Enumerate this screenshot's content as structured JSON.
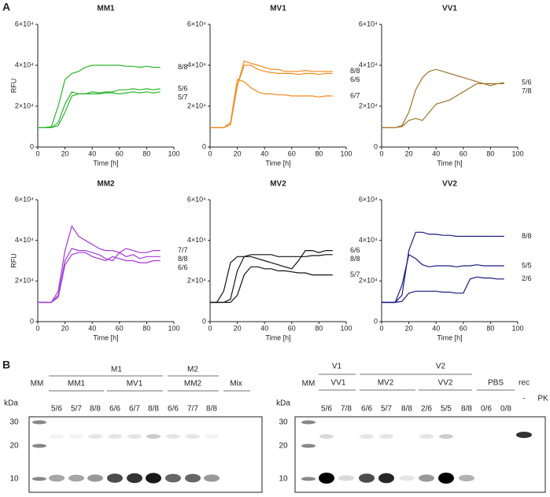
{
  "panel_labels": [
    "A",
    "B"
  ],
  "chart_data": [
    {
      "type": "line",
      "title": "MM1",
      "x_label": "Time [h]",
      "y_label": "RFU",
      "xlim": [
        0,
        100
      ],
      "ylim": [
        0,
        60000
      ],
      "xticks": [
        0,
        20,
        40,
        60,
        80,
        100
      ],
      "yticks": [
        0,
        {
          "value": 20000,
          "label": "2×10⁴"
        },
        {
          "value": 40000,
          "label": "4×10⁴"
        },
        {
          "value": 60000,
          "label": "6×10⁴"
        }
      ],
      "x": [
        0,
        5,
        10,
        15,
        20,
        25,
        30,
        35,
        40,
        45,
        50,
        55,
        60,
        65,
        70,
        75,
        80,
        85,
        90
      ],
      "series": [
        {
          "name": "8/8",
          "color": "#2db42d",
          "values": [
            9500,
            9500,
            10000,
            20000,
            33000,
            36000,
            37000,
            39000,
            40000,
            40000,
            40000,
            40000,
            40000,
            39500,
            39500,
            39000,
            39500,
            39000,
            39000
          ]
        },
        {
          "name": "5/6",
          "color": "#2db42d",
          "values": [
            9500,
            9500,
            9500,
            12000,
            21000,
            27000,
            26000,
            26000,
            27000,
            26500,
            27000,
            27000,
            28000,
            28000,
            28500,
            28000,
            28500,
            28000,
            28500
          ]
        },
        {
          "name": "5/7",
          "color": "#2db42d",
          "values": [
            9500,
            9500,
            9500,
            10500,
            17000,
            25000,
            26000,
            26000,
            26000,
            26000,
            26500,
            26500,
            26000,
            26500,
            27000,
            26500,
            27000,
            26500,
            27000
          ]
        }
      ]
    },
    {
      "type": "line",
      "title": "MV1",
      "x_label": "Time [h]",
      "xlim": [
        0,
        100
      ],
      "ylim": [
        0,
        60000
      ],
      "xticks": [
        0,
        20,
        40,
        60,
        80,
        100
      ],
      "yticks": [
        0,
        {
          "value": 20000,
          "label": "2×10⁴"
        },
        {
          "value": 40000,
          "label": "4×10⁴"
        },
        {
          "value": 60000,
          "label": "6×10⁴"
        }
      ],
      "x": [
        0,
        5,
        10,
        15,
        20,
        25,
        30,
        35,
        40,
        45,
        50,
        55,
        60,
        65,
        70,
        75,
        80,
        85,
        90
      ],
      "series": [
        {
          "name": "8/8",
          "color": "#f28a1c",
          "values": [
            9500,
            9500,
            9500,
            11000,
            30000,
            42000,
            41000,
            40000,
            39000,
            38000,
            38000,
            37000,
            37000,
            37000,
            37500,
            37000,
            37000,
            37000,
            37000
          ]
        },
        {
          "name": "6/6",
          "color": "#f28a1c",
          "values": [
            9500,
            9500,
            9500,
            11000,
            30000,
            40000,
            40000,
            38000,
            37000,
            36500,
            36000,
            36000,
            36000,
            35500,
            36000,
            36000,
            35500,
            36000,
            36000
          ]
        },
        {
          "name": "6/7",
          "color": "#f28a1c",
          "values": [
            9500,
            9500,
            9500,
            12000,
            33000,
            32000,
            29000,
            27000,
            26000,
            26000,
            25500,
            25500,
            25000,
            25000,
            25000,
            25000,
            24500,
            25000,
            25000
          ]
        }
      ]
    },
    {
      "type": "line",
      "title": "VV1",
      "x_label": "Time [h]",
      "xlim": [
        0,
        100
      ],
      "ylim": [
        0,
        60000
      ],
      "xticks": [
        0,
        20,
        40,
        60,
        80,
        100
      ],
      "yticks": [
        0,
        {
          "value": 20000,
          "label": "2×10⁴"
        },
        {
          "value": 40000,
          "label": "4×10⁴"
        },
        {
          "value": 60000,
          "label": "6×10⁴"
        }
      ],
      "x": [
        0,
        5,
        10,
        15,
        20,
        25,
        30,
        35,
        40,
        45,
        50,
        55,
        60,
        65,
        70,
        75,
        80,
        85,
        90
      ],
      "series": [
        {
          "name": "7/8",
          "color": "#a0722a",
          "values": [
            9500,
            9500,
            9500,
            10500,
            17000,
            28000,
            34000,
            37000,
            38000,
            37000,
            36000,
            35000,
            34000,
            33000,
            32000,
            31000,
            31000,
            31000,
            31000
          ]
        },
        {
          "name": "5/6",
          "color": "#a0722a",
          "values": [
            9500,
            9500,
            9500,
            10000,
            13000,
            14000,
            13000,
            17000,
            21000,
            22000,
            23000,
            25000,
            27000,
            29000,
            31000,
            31000,
            30000,
            31000,
            31500
          ]
        }
      ]
    },
    {
      "type": "line",
      "title": "MM2",
      "x_label": "Time [h]",
      "y_label": "RFU",
      "xlim": [
        0,
        100
      ],
      "ylim": [
        0,
        60000
      ],
      "xticks": [
        0,
        20,
        40,
        60,
        80,
        100
      ],
      "yticks": [
        0,
        {
          "value": 20000,
          "label": "2×10⁴"
        },
        {
          "value": 40000,
          "label": "4×10⁴"
        },
        {
          "value": 60000,
          "label": "6×10⁴"
        }
      ],
      "x": [
        0,
        5,
        10,
        15,
        20,
        25,
        30,
        35,
        40,
        45,
        50,
        55,
        60,
        65,
        70,
        75,
        80,
        85,
        90
      ],
      "series": [
        {
          "name": "7/7",
          "color": "#a43ad6",
          "values": [
            9500,
            9500,
            9500,
            15000,
            35000,
            47000,
            42000,
            40000,
            38000,
            36000,
            35000,
            35000,
            34000,
            36000,
            35000,
            34000,
            34000,
            35000,
            35000
          ]
        },
        {
          "name": "8/8",
          "color": "#a43ad6",
          "values": [
            9500,
            9500,
            9500,
            13000,
            30000,
            36000,
            35000,
            35000,
            34000,
            33000,
            31000,
            30000,
            34000,
            32000,
            33000,
            31000,
            32000,
            32000,
            32000
          ]
        },
        {
          "name": "6/6",
          "color": "#a43ad6",
          "values": [
            9500,
            9500,
            9500,
            12000,
            28000,
            33000,
            34000,
            34000,
            32000,
            31000,
            30000,
            32000,
            31000,
            30000,
            30000,
            29000,
            29000,
            30000,
            30000
          ]
        }
      ]
    },
    {
      "type": "line",
      "title": "MV2",
      "x_label": "Time [h]",
      "xlim": [
        0,
        100
      ],
      "ylim": [
        0,
        60000
      ],
      "xticks": [
        0,
        20,
        40,
        60,
        80,
        100
      ],
      "yticks": [
        0,
        {
          "value": 20000,
          "label": "2×10⁴"
        },
        {
          "value": 40000,
          "label": "4×10⁴"
        },
        {
          "value": 60000,
          "label": "6×10⁴"
        }
      ],
      "x": [
        0,
        5,
        10,
        15,
        20,
        25,
        30,
        35,
        40,
        45,
        50,
        55,
        60,
        65,
        70,
        75,
        80,
        85,
        90
      ],
      "series": [
        {
          "name": "6/6",
          "color": "#111111",
          "values": [
            9500,
            9500,
            15000,
            29000,
            32000,
            32000,
            32000,
            31000,
            30000,
            29000,
            28000,
            27000,
            26000,
            30000,
            35000,
            35000,
            34000,
            35000,
            35000
          ]
        },
        {
          "name": "8/8",
          "color": "#111111",
          "values": [
            9500,
            9500,
            9500,
            11000,
            25000,
            32000,
            33000,
            33000,
            33000,
            33000,
            32000,
            32000,
            32000,
            32000,
            32000,
            32500,
            32500,
            33000,
            33000
          ]
        },
        {
          "name": "5/7",
          "color": "#111111",
          "values": [
            9500,
            9500,
            9500,
            9500,
            13000,
            23000,
            27000,
            27000,
            26000,
            26000,
            25000,
            25000,
            24500,
            24000,
            24000,
            23000,
            23000,
            23000,
            23000
          ]
        }
      ]
    },
    {
      "type": "line",
      "title": "VV2",
      "x_label": "Time [h]",
      "xlim": [
        0,
        100
      ],
      "ylim": [
        0,
        60000
      ],
      "xticks": [
        0,
        20,
        40,
        60,
        80,
        100
      ],
      "yticks": [
        0,
        {
          "value": 20000,
          "label": "2×10⁴"
        },
        {
          "value": 40000,
          "label": "4×10⁴"
        },
        {
          "value": 60000,
          "label": "6×10⁴"
        }
      ],
      "x": [
        0,
        5,
        10,
        15,
        20,
        25,
        30,
        35,
        40,
        45,
        50,
        55,
        60,
        65,
        70,
        75,
        80,
        85,
        90
      ],
      "series": [
        {
          "name": "8/8",
          "color": "#1a1a80",
          "values": [
            9500,
            9500,
            9500,
            13000,
            35000,
            44000,
            44000,
            43000,
            43000,
            42500,
            42500,
            42000,
            42000,
            42000,
            42000,
            42000,
            42000,
            42000,
            42000
          ]
        },
        {
          "name": "5/5",
          "color": "#1a1a80",
          "values": [
            9500,
            9500,
            9500,
            18000,
            33000,
            31000,
            28000,
            27000,
            27500,
            27500,
            27500,
            27000,
            27500,
            27500,
            28000,
            27500,
            27500,
            27500,
            27500
          ]
        },
        {
          "name": "2/6",
          "color": "#1a1a80",
          "values": [
            9500,
            9500,
            9500,
            10000,
            14000,
            15000,
            15000,
            15000,
            15000,
            14500,
            14500,
            14000,
            14000,
            21000,
            22000,
            21500,
            21500,
            21000,
            21000
          ]
        }
      ]
    }
  ],
  "blots": [
    {
      "kda_label": "kDa",
      "marker_lane": "MM",
      "markers": [
        "30",
        "20",
        "10"
      ],
      "groups": [
        "M1",
        "M2"
      ],
      "subgroups": [
        "MM1",
        "MV1",
        "MM2",
        "Mix"
      ],
      "lanes": [
        "5/6",
        "5/7",
        "8/8",
        "6/6",
        "6/7",
        "8/8",
        "6/6",
        "7/7",
        "8/8"
      ]
    },
    {
      "kda_label": "kDa",
      "marker_lane": "MM",
      "markers": [
        "30",
        "20",
        "10"
      ],
      "groups": [
        "V1",
        "V2"
      ],
      "subgroups": [
        "VV1",
        "MV2",
        "VV2",
        "PBS"
      ],
      "extra_group": "rec",
      "lanes": [
        "5/6",
        "7/8",
        "6/6",
        "5/7",
        "8/8",
        "2/6",
        "5/5",
        "8/8",
        "0/6",
        "0/8"
      ],
      "pk_lanes": [
        "-",
        "PK"
      ]
    }
  ]
}
